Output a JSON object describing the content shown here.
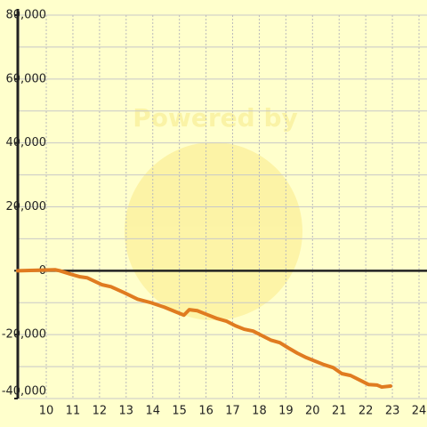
{
  "chart_data": {
    "type": "line",
    "watermark": "Powered by",
    "xlim": [
      8.93,
      24.3
    ],
    "ylim": [
      -40000,
      80000
    ],
    "xticks": [
      10,
      11,
      12,
      13,
      14,
      15,
      16,
      17,
      18,
      19,
      20,
      21,
      22,
      23,
      24
    ],
    "yticks": [
      {
        "value": 80000,
        "label": "80,000"
      },
      {
        "value": 60000,
        "label": "60,000"
      },
      {
        "value": 40000,
        "label": "40,000"
      },
      {
        "value": 20000,
        "label": "20,000"
      },
      0,
      {
        "value": -20000,
        "label": "-20,000"
      },
      {
        "value": -40000,
        "label": "-40,000"
      }
    ],
    "ygrid": [
      70000,
      50000,
      30000,
      10000,
      -10000,
      -30000
    ],
    "grid": true,
    "series": [
      {
        "color": "#e07b20",
        "x": [
          8.93,
          10.33,
          10.5,
          10.93,
          11.27,
          11.53,
          12.1,
          12.43,
          12.93,
          13.43,
          13.93,
          14.43,
          14.93,
          15.17,
          15.37,
          15.67,
          16.0,
          16.43,
          16.77,
          17.1,
          17.43,
          17.77,
          18.1,
          18.43,
          18.77,
          19.1,
          19.43,
          19.77,
          20.1,
          20.43,
          20.77,
          21.1,
          21.43,
          21.77,
          22.1,
          22.43,
          22.6,
          22.93
        ],
        "values": [
          0,
          300,
          0,
          -1100,
          -1900,
          -2200,
          -4400,
          -5000,
          -6900,
          -8900,
          -10000,
          -11400,
          -13100,
          -13900,
          -12200,
          -12500,
          -13600,
          -15000,
          -15800,
          -17200,
          -18300,
          -18900,
          -20300,
          -21700,
          -22500,
          -24200,
          -25800,
          -27200,
          -28300,
          -29400,
          -30300,
          -32200,
          -32800,
          -34200,
          -35600,
          -35800,
          -36400,
          -36100
        ]
      }
    ]
  }
}
